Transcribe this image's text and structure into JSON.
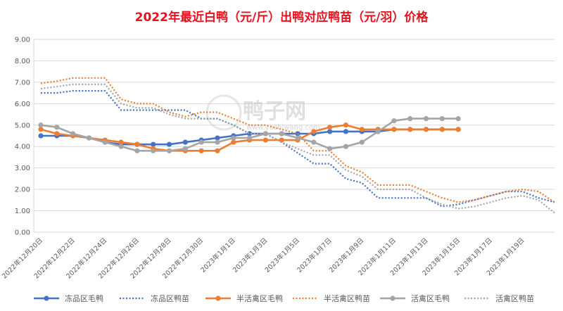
{
  "chart_data": {
    "type": "line",
    "title": "2022年最近白鸭（元/斤）出鸭对应鸭苗（元/羽）价格",
    "xlabel": "",
    "ylabel": "",
    "ylim": [
      0,
      9
    ],
    "y_ticks": [
      "0.00",
      "1.00",
      "2.00",
      "3.00",
      "4.00",
      "5.00",
      "6.00",
      "7.00",
      "8.00",
      "9.00"
    ],
    "x_tick_labels": [
      "2022年12月20日",
      "2022年12月22日",
      "2022年12月24日",
      "2022年12月26日",
      "2022年12月28日",
      "2022年12月30日",
      "2023年1月1日",
      "2023年1月3日",
      "2023年1月5日",
      "2023年1月7日",
      "2023年1月9日",
      "2023年1月11日",
      "2023年1月13日",
      "2023年1月15日",
      "2023年1月17日",
      "2023年1月19日"
    ],
    "x": [
      "2022-12-20",
      "2022-12-21",
      "2022-12-22",
      "2022-12-23",
      "2022-12-24",
      "2022-12-25",
      "2022-12-26",
      "2022-12-27",
      "2022-12-28",
      "2022-12-29",
      "2022-12-30",
      "2022-12-31",
      "2023-01-01",
      "2023-01-02",
      "2023-01-03",
      "2023-01-04",
      "2023-01-05",
      "2023-01-06",
      "2023-01-07",
      "2023-01-08",
      "2023-01-09",
      "2023-01-10",
      "2023-01-11",
      "2023-01-12",
      "2023-01-13",
      "2023-01-14",
      "2023-01-15",
      "2023-01-16",
      "2023-01-17",
      "2023-01-18",
      "2023-01-19",
      "2023-01-20",
      "2023-01-21"
    ],
    "grid": true,
    "legend_position": "bottom",
    "series": [
      {
        "name": "冻品区毛鸭",
        "color": "#4472c4",
        "style": "solid",
        "values": [
          4.5,
          4.5,
          4.5,
          4.4,
          4.2,
          4.1,
          4.1,
          4.1,
          4.1,
          4.2,
          4.3,
          4.4,
          4.5,
          4.6,
          4.6,
          4.6,
          4.6,
          4.6,
          4.7,
          4.7,
          4.7,
          4.7,
          4.8,
          4.8,
          4.8,
          4.8,
          4.8,
          null,
          null,
          null,
          null,
          null,
          null
        ]
      },
      {
        "name": "冻品区鸭苗",
        "color": "#4472c4",
        "style": "dotted",
        "values": [
          6.5,
          6.5,
          6.6,
          6.6,
          6.6,
          5.7,
          5.7,
          5.7,
          5.7,
          5.7,
          5.3,
          5.3,
          5.0,
          4.6,
          4.6,
          4.2,
          3.7,
          3.2,
          3.2,
          2.5,
          2.3,
          1.6,
          1.6,
          1.6,
          1.6,
          1.2,
          1.3,
          1.5,
          1.7,
          1.9,
          1.9,
          1.6,
          1.4
        ]
      },
      {
        "name": "半活禽区毛鸭",
        "color": "#ed7d31",
        "style": "solid",
        "values": [
          4.8,
          4.6,
          4.5,
          4.4,
          4.3,
          4.2,
          4.1,
          3.9,
          3.8,
          3.8,
          3.8,
          3.8,
          4.2,
          4.3,
          4.3,
          4.3,
          4.3,
          4.7,
          4.9,
          5.0,
          4.8,
          4.8,
          4.8,
          4.8,
          4.8,
          4.8,
          4.8,
          null,
          null,
          null,
          null,
          null,
          null
        ]
      },
      {
        "name": "半活禽区鸭苗",
        "color": "#ed7d31",
        "style": "dotted",
        "values": [
          6.95,
          7.05,
          7.2,
          7.2,
          7.2,
          6.2,
          6.0,
          6.0,
          5.6,
          5.4,
          5.6,
          5.6,
          5.3,
          5.0,
          5.0,
          4.8,
          4.6,
          3.8,
          3.8,
          3.1,
          2.8,
          2.2,
          2.2,
          2.2,
          1.9,
          1.6,
          1.4,
          1.5,
          1.7,
          1.9,
          2.0,
          1.9,
          1.4
        ]
      },
      {
        "name": "活禽区毛鸭",
        "color": "#a5a5a5",
        "style": "solid",
        "values": [
          5.0,
          4.9,
          4.6,
          4.4,
          4.2,
          4.0,
          3.8,
          3.8,
          3.8,
          3.9,
          4.2,
          4.2,
          4.4,
          4.4,
          4.6,
          4.6,
          4.4,
          4.2,
          3.9,
          4.0,
          4.2,
          4.7,
          5.2,
          5.3,
          5.3,
          5.3,
          5.3,
          null,
          null,
          null,
          null,
          null,
          null
        ]
      },
      {
        "name": "活禽区鸭苗",
        "color": "#a5a5a5",
        "style": "dotted",
        "values": [
          6.7,
          6.8,
          6.9,
          6.9,
          6.9,
          6.0,
          5.8,
          5.8,
          5.5,
          5.3,
          5.3,
          5.3,
          5.0,
          4.6,
          4.6,
          4.2,
          3.9,
          3.6,
          3.6,
          2.9,
          2.6,
          2.0,
          2.0,
          2.0,
          1.6,
          1.3,
          1.1,
          1.2,
          1.4,
          1.6,
          1.7,
          1.5,
          0.9
        ]
      }
    ]
  },
  "watermark": {
    "text": "鸭子网",
    "url": "www.yazhiwang.com"
  }
}
